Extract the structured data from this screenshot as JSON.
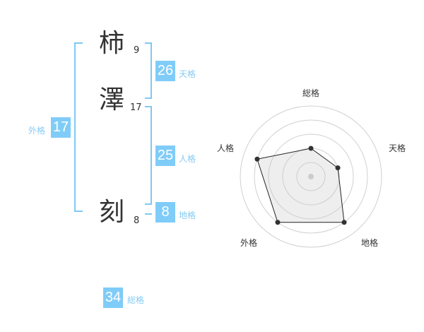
{
  "name": [
    {
      "char": "柿",
      "strokes": "9"
    },
    {
      "char": "澤",
      "strokes": "17"
    },
    {
      "char": "刻",
      "strokes": "8"
    }
  ],
  "fortunes": {
    "tenkaku": {
      "label": "天格",
      "value": "26"
    },
    "jinkaku": {
      "label": "人格",
      "value": "25"
    },
    "chikaku": {
      "label": "地格",
      "value": "8"
    },
    "gaikaku": {
      "label": "外格",
      "value": "17"
    },
    "soukaku": {
      "label": "総格",
      "value": "34"
    }
  },
  "colors": {
    "accent": "#80ccf8",
    "label": "#86cbf3"
  },
  "chart_data": {
    "type": "radar",
    "axes": [
      "総格",
      "天格",
      "地格",
      "外格",
      "人格"
    ],
    "values": [
      2,
      2,
      4,
      4,
      4
    ],
    "range": [
      0,
      5
    ],
    "rings": 5
  }
}
